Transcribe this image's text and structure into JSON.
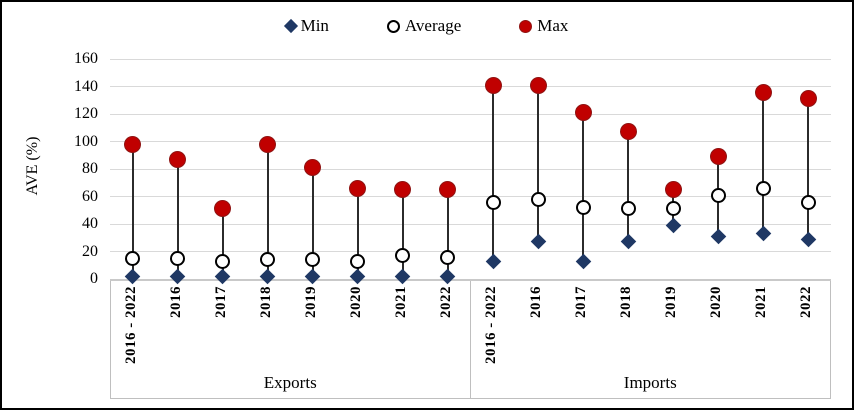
{
  "legend": [
    {
      "label": "Min",
      "marker": "diamond-icon"
    },
    {
      "label": "Average",
      "marker": "open-circle-icon"
    },
    {
      "label": "Max",
      "marker": "filled-circle-icon"
    }
  ],
  "colors": {
    "min": "#1F3864",
    "average_stroke": "#000000",
    "max": "#C00000",
    "stem": "#2b2b2b",
    "gridline": "#D9D9D9"
  },
  "chart_data": {
    "type": "scatter",
    "subtype": "min-average-max-range",
    "title": "",
    "xlabel": "",
    "ylabel": "AVE (%)",
    "ylim": [
      0,
      160
    ],
    "yticks": [
      0,
      20,
      40,
      60,
      80,
      100,
      120,
      140,
      160
    ],
    "grid": true,
    "legend_position": "top",
    "categories": [
      "2016 - 2022",
      "2016",
      "2017",
      "2018",
      "2019",
      "2020",
      "2021",
      "2022",
      "2016 - 2022",
      "2016",
      "2017",
      "2018",
      "2019",
      "2020",
      "2021",
      "2022"
    ],
    "category_groups": [
      {
        "label": "Exports",
        "span": 8
      },
      {
        "label": "Imports",
        "span": 8
      }
    ],
    "series": [
      {
        "name": "Min",
        "marker": "diamond",
        "color": "#1F3864",
        "values": [
          2,
          2,
          2,
          2,
          2,
          2,
          2,
          2,
          13,
          27,
          13,
          27,
          39,
          31,
          33,
          29
        ]
      },
      {
        "name": "Average",
        "marker": "open-circle",
        "color": "#000000",
        "values": [
          15,
          15,
          13,
          14,
          14,
          13,
          17,
          16,
          56,
          58,
          52,
          51,
          51,
          61,
          66,
          56
        ]
      },
      {
        "name": "Max",
        "marker": "filled-circle",
        "color": "#C00000",
        "values": [
          98,
          87,
          51,
          98,
          81,
          66,
          65,
          65,
          141,
          141,
          121,
          107,
          65,
          89,
          136,
          131
        ]
      }
    ]
  }
}
